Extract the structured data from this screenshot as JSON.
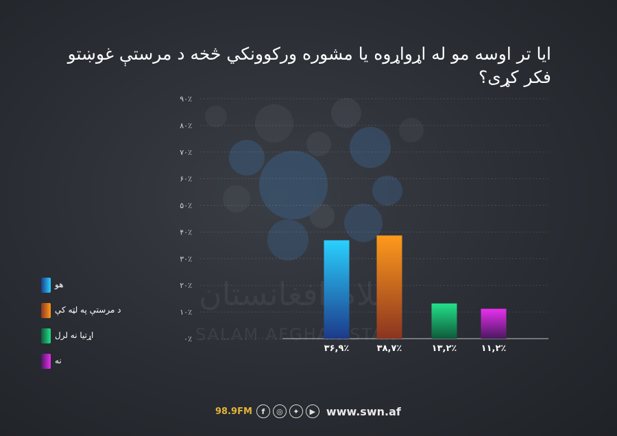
{
  "title": "ایا تر اوسه مو له اړواړوه یا مشوره ورکوونکي څخه د مرستې غوښتو فکر کړی؟",
  "watermark": {
    "arabic": "سلام افغانستان",
    "english": "SALAM AFGHANISTAN"
  },
  "footer": {
    "frequency": "98.9FM",
    "website": "www.swn.af",
    "icons": [
      "facebook-icon",
      "instagram-icon",
      "twitter-icon",
      "youtube-icon"
    ]
  },
  "legend": [
    {
      "label": "هو",
      "color": "#1ea0e6"
    },
    {
      "label": "د مرستې په لټه کې",
      "color": "#f08a1c"
    },
    {
      "label": "اړتیا نه لرل",
      "color": "#22d07a"
    },
    {
      "label": "نه",
      "color": "#c42ad6"
    }
  ],
  "chart_data": {
    "type": "bar",
    "title": "ایا تر اوسه مو له اړواړوه یا مشوره ورکوونکي څخه د مرستې غوښتو فکر کړی؟",
    "categories": [
      "هو",
      "د مرستې په لټه کې",
      "اړتیا نه لرل",
      "نه"
    ],
    "values": [
      36.9,
      38.7,
      13.2,
      11.2
    ],
    "value_labels": [
      "۳۶,۹٪",
      "۳۸,۷٪",
      "۱۳,۲٪",
      "۱۱,۲٪"
    ],
    "colors": [
      [
        "#2ad0ff",
        "#1c3a8a"
      ],
      [
        "#ff9a1c",
        "#8a3420"
      ],
      [
        "#24e08a",
        "#0e5a3a"
      ],
      [
        "#e830f0",
        "#4a1860"
      ]
    ],
    "ylim": [
      0,
      90
    ],
    "yticks": [
      "۰٪",
      "۱۰٪",
      "۲۰٪",
      "۳۰٪",
      "۴۰٪",
      "۵۰٪",
      "۶۰٪",
      "۷۰٪",
      "۸۰٪",
      "۹۰٪"
    ],
    "grid": true,
    "legend_position": "left"
  }
}
